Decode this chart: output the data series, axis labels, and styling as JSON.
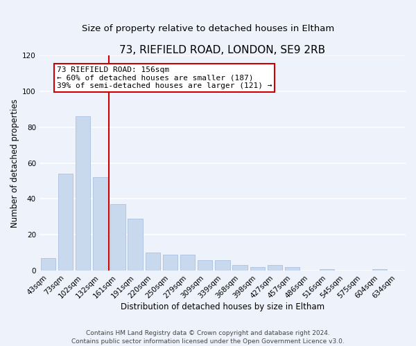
{
  "title": "73, RIEFIELD ROAD, LONDON, SE9 2RB",
  "subtitle": "Size of property relative to detached houses in Eltham",
  "xlabel": "Distribution of detached houses by size in Eltham",
  "ylabel": "Number of detached properties",
  "categories": [
    "43sqm",
    "73sqm",
    "102sqm",
    "132sqm",
    "161sqm",
    "191sqm",
    "220sqm",
    "250sqm",
    "279sqm",
    "309sqm",
    "339sqm",
    "368sqm",
    "398sqm",
    "427sqm",
    "457sqm",
    "486sqm",
    "516sqm",
    "545sqm",
    "575sqm",
    "604sqm",
    "634sqm"
  ],
  "values": [
    7,
    54,
    86,
    52,
    37,
    29,
    10,
    9,
    9,
    6,
    6,
    3,
    2,
    3,
    2,
    0,
    1,
    0,
    0,
    1,
    0
  ],
  "bar_color": "#c8d9ee",
  "bar_edge_color": "#a8c0e0",
  "vline_color": "#cc0000",
  "annotation_line1": "73 RIEFIELD ROAD: 156sqm",
  "annotation_line2": "← 60% of detached houses are smaller (187)",
  "annotation_line3": "39% of semi-detached houses are larger (121) →",
  "annotation_box_edgecolor": "#cc0000",
  "annotation_box_facecolor": "white",
  "ylim": [
    0,
    120
  ],
  "yticks": [
    0,
    20,
    40,
    60,
    80,
    100,
    120
  ],
  "footer_line1": "Contains HM Land Registry data © Crown copyright and database right 2024.",
  "footer_line2": "Contains public sector information licensed under the Open Government Licence v3.0.",
  "background_color": "#eef2fa",
  "grid_color": "#ffffff",
  "title_fontsize": 11,
  "subtitle_fontsize": 9.5,
  "axis_label_fontsize": 8.5,
  "tick_fontsize": 7.5,
  "annotation_fontsize": 8,
  "footer_fontsize": 6.5
}
